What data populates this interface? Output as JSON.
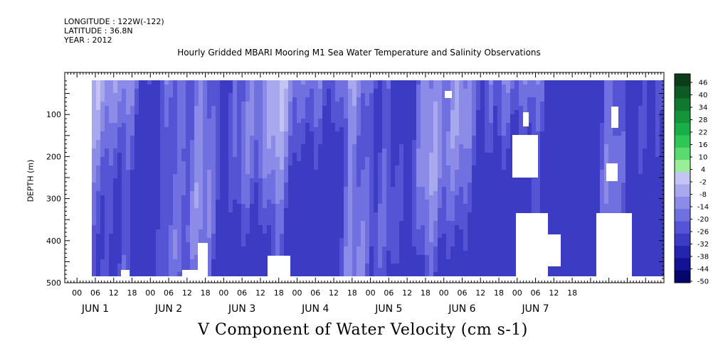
{
  "header": {
    "longitude": "LONGITUDE : 122W(-122)",
    "latitude": "LATITUDE : 36.8N",
    "year": "YEAR : 2012"
  },
  "chart_data": {
    "type": "heatmap",
    "title": "",
    "subtitle": "Hourly Gridded MBARI Mooring M1 Sea Water Temperature and Salinity Observations",
    "xlabel": "V Component of Water Velocity (cm s-1)",
    "ylabel": "DEPTH (m)",
    "y_axis": {
      "reversed": true,
      "range": [
        0,
        500
      ],
      "ticks": [
        100,
        200,
        300,
        400,
        500
      ]
    },
    "x_axis": {
      "hour_tick_labels": [
        "00",
        "06",
        "12",
        "18",
        "00",
        "06",
        "12",
        "18",
        "00",
        "06",
        "12",
        "18",
        "00",
        "06",
        "12",
        "18",
        "00",
        "06",
        "12",
        "18",
        "00",
        "06",
        "12",
        "18",
        "00",
        "06",
        "12",
        "18"
      ],
      "day_labels": [
        "JUN  1",
        "JUN  2",
        "JUN  3",
        "JUN  4",
        "JUN  5",
        "JUN  6",
        "JUN  7"
      ]
    },
    "colorbar": {
      "labels": [
        "46",
        "40",
        "34",
        "28",
        "22",
        "16",
        "10",
        "4",
        "-2",
        "-8",
        "-14",
        "-20",
        "-26",
        "-32",
        "-38",
        "-44",
        "-50"
      ],
      "colors": [
        "#0b3d1a",
        "#0e5a24",
        "#10782e",
        "#13933a",
        "#1aae46",
        "#2fc655",
        "#5bdb6e",
        "#9aee9a",
        "#c4c4f4",
        "#a8a8ef",
        "#8c8ce8",
        "#7070e0",
        "#5454d4",
        "#3b3bc4",
        "#2424ac",
        "#121294",
        "#05056e"
      ]
    }
  }
}
